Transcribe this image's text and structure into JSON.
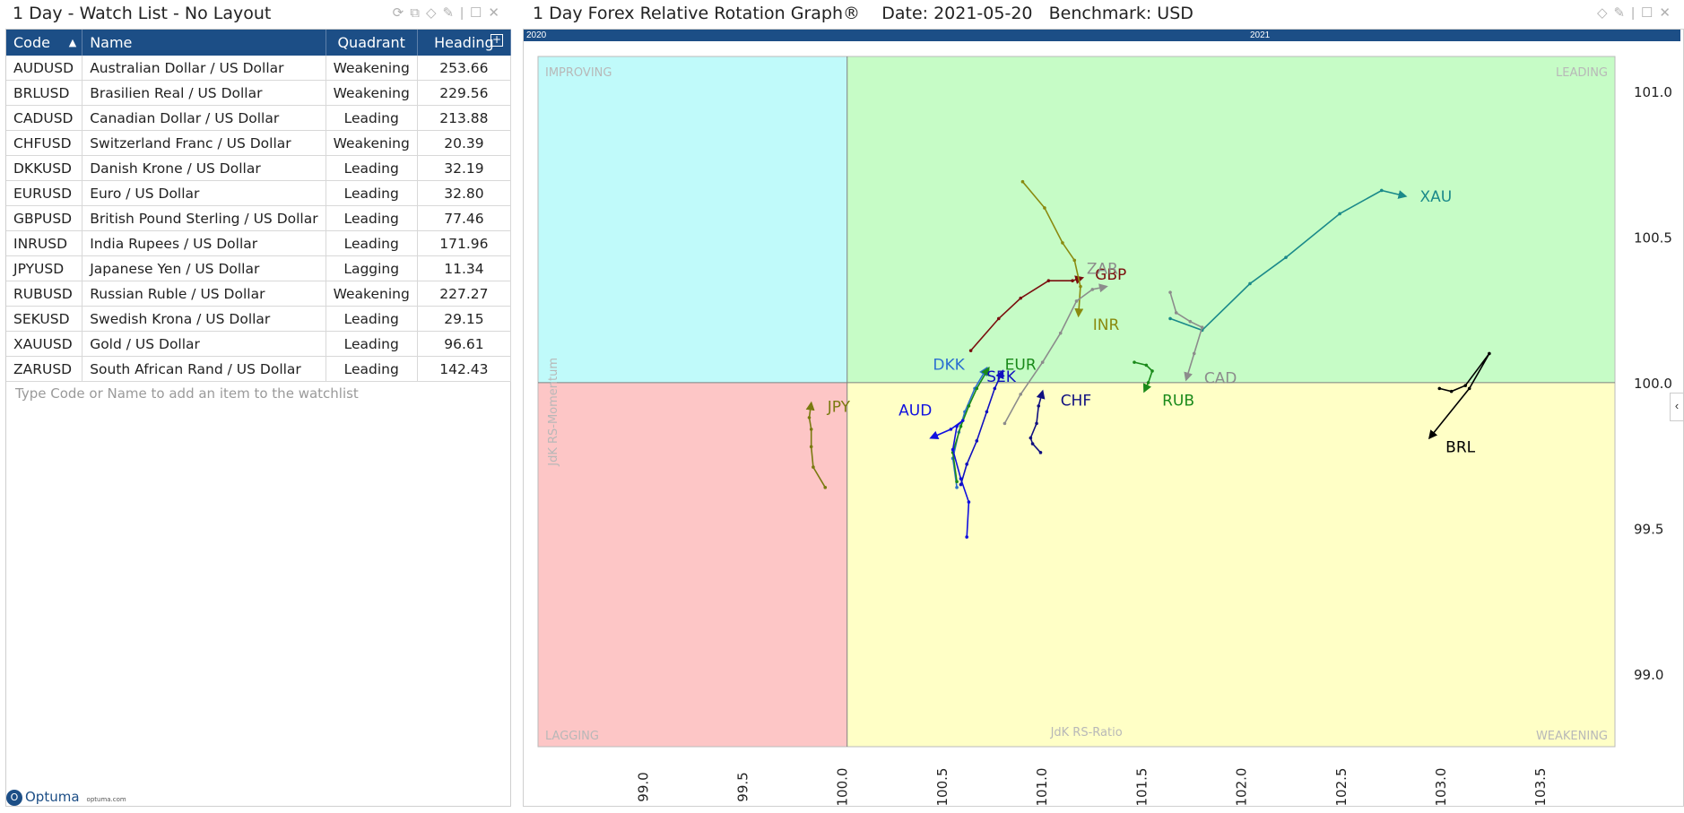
{
  "watchlist": {
    "title": "1 Day - Watch List - No Layout",
    "columns": [
      "Code",
      "Name",
      "Quadrant",
      "Heading"
    ],
    "rows": [
      {
        "code": "AUDUSD",
        "name": "Australian Dollar / US Dollar",
        "quadrant": "Weakening",
        "heading": "253.66"
      },
      {
        "code": "BRLUSD",
        "name": "Brasilien Real / US Dollar",
        "quadrant": "Weakening",
        "heading": "229.56"
      },
      {
        "code": "CADUSD",
        "name": "Canadian Dollar / US Dollar",
        "quadrant": "Leading",
        "heading": "213.88"
      },
      {
        "code": "CHFUSD",
        "name": "Switzerland Franc / US Dollar",
        "quadrant": "Weakening",
        "heading": "20.39"
      },
      {
        "code": "DKKUSD",
        "name": "Danish Krone / US Dollar",
        "quadrant": "Leading",
        "heading": "32.19"
      },
      {
        "code": "EURUSD",
        "name": "Euro / US Dollar",
        "quadrant": "Leading",
        "heading": "32.80"
      },
      {
        "code": "GBPUSD",
        "name": "British Pound Sterling / US Dollar",
        "quadrant": "Leading",
        "heading": "77.46"
      },
      {
        "code": "INRUSD",
        "name": "India Rupees / US Dollar",
        "quadrant": "Leading",
        "heading": "171.96"
      },
      {
        "code": "JPYUSD",
        "name": "Japanese Yen / US Dollar",
        "quadrant": "Lagging",
        "heading": "11.34"
      },
      {
        "code": "RUBUSD",
        "name": "Russian Ruble / US Dollar",
        "quadrant": "Weakening",
        "heading": "227.27"
      },
      {
        "code": "SEKUSD",
        "name": "Swedish Krona / US Dollar",
        "quadrant": "Leading",
        "heading": "29.15"
      },
      {
        "code": "XAUUSD",
        "name": "Gold / US Dollar",
        "quadrant": "Leading",
        "heading": "96.61"
      },
      {
        "code": "ZARUSD",
        "name": "South African Rand / US Dollar",
        "quadrant": "Leading",
        "heading": "142.43"
      }
    ],
    "input_placeholder": "Type Code or Name to add an item to the watchlist",
    "logo_text": "Optuma",
    "logo_site": "optuma.com"
  },
  "rrg": {
    "title": "1 Day Forex Relative Rotation Graph®",
    "date_label": "Date: 2021-05-20",
    "benchmark_label": "Benchmark:  USD",
    "timeline_labels": [
      "2020",
      "2021"
    ]
  },
  "chart_data": {
    "type": "scatter",
    "title": "1 Day Forex Relative Rotation Graph®",
    "xlabel": "JdK RS-Ratio",
    "ylabel": "JdK RS-Momentum",
    "xlim": [
      98.45,
      103.85
    ],
    "ylim": [
      98.75,
      101.12
    ],
    "center": [
      100.0,
      100.0
    ],
    "xticks": [
      "99.0",
      "99.5",
      "100.0",
      "100.5",
      "101.0",
      "101.5",
      "102.0",
      "102.5",
      "103.0",
      "103.5"
    ],
    "yticks": [
      "101.0",
      "100.5",
      "100.0",
      "99.5",
      "99.0"
    ],
    "quadrants": [
      {
        "name": "IMPROVING",
        "color": "#c0fafa"
      },
      {
        "name": "LEADING",
        "color": "#c6fcc6"
      },
      {
        "name": "LAGGING",
        "color": "#fdc6c6"
      },
      {
        "name": "WEAKENING",
        "color": "#ffffc6"
      }
    ],
    "series": [
      {
        "name": "XAU",
        "color": "#1b8a8a",
        "points": [
          [
            101.62,
            100.22
          ],
          [
            101.78,
            100.18
          ],
          [
            102.02,
            100.34
          ],
          [
            102.2,
            100.43
          ],
          [
            102.47,
            100.58
          ],
          [
            102.68,
            100.66
          ],
          [
            102.8,
            100.64
          ]
        ]
      },
      {
        "name": "GBP",
        "color": "#7a0e0e",
        "points": [
          [
            100.62,
            100.11
          ],
          [
            100.76,
            100.22
          ],
          [
            100.87,
            100.29
          ],
          [
            101.01,
            100.35
          ],
          [
            101.13,
            100.35
          ],
          [
            101.18,
            100.36
          ]
        ]
      },
      {
        "name": "INR",
        "color": "#8a8a10",
        "points": [
          [
            100.88,
            100.69
          ],
          [
            100.99,
            100.6
          ],
          [
            101.08,
            100.48
          ],
          [
            101.14,
            100.42
          ],
          [
            101.17,
            100.33
          ],
          [
            101.16,
            100.23
          ]
        ]
      },
      {
        "name": "ZAR",
        "color": "#8c8c8c",
        "points": [
          [
            100.79,
            99.86
          ],
          [
            100.87,
            99.96
          ],
          [
            100.98,
            100.07
          ],
          [
            101.07,
            100.17
          ],
          [
            101.15,
            100.28
          ],
          [
            101.23,
            100.32
          ],
          [
            101.3,
            100.33
          ]
        ]
      },
      {
        "name": "CAD",
        "color": "#8c8c8c",
        "points": [
          [
            101.62,
            100.31
          ],
          [
            101.65,
            100.24
          ],
          [
            101.72,
            100.21
          ],
          [
            101.78,
            100.19
          ],
          [
            101.74,
            100.1
          ],
          [
            101.7,
            100.01
          ]
        ]
      },
      {
        "name": "DKK",
        "color": "#2b6fd0",
        "points": [
          [
            100.55,
            99.64
          ],
          [
            100.53,
            99.74
          ],
          [
            100.56,
            99.83
          ],
          [
            100.59,
            99.9
          ],
          [
            100.64,
            99.98
          ],
          [
            100.7,
            100.05
          ]
        ]
      },
      {
        "name": "EUR",
        "color": "#1a8a1a",
        "points": [
          [
            100.55,
            99.66
          ],
          [
            100.53,
            99.76
          ],
          [
            100.57,
            99.85
          ],
          [
            100.61,
            99.92
          ],
          [
            100.65,
            99.98
          ],
          [
            100.71,
            100.05
          ]
        ]
      },
      {
        "name": "AUD",
        "color": "#1010e0",
        "points": [
          [
            100.6,
            99.47
          ],
          [
            100.61,
            99.59
          ],
          [
            100.57,
            99.67
          ],
          [
            100.53,
            99.77
          ],
          [
            100.55,
            99.85
          ],
          [
            100.58,
            99.87
          ],
          [
            100.52,
            99.84
          ],
          [
            100.42,
            99.81
          ]
        ]
      },
      {
        "name": "SEK",
        "color": "#1010c0",
        "points": [
          [
            100.57,
            99.65
          ],
          [
            100.6,
            99.72
          ],
          [
            100.65,
            99.8
          ],
          [
            100.7,
            99.9
          ],
          [
            100.74,
            99.98
          ],
          [
            100.78,
            100.04
          ]
        ]
      },
      {
        "name": "CHF",
        "color": "#101080",
        "points": [
          [
            100.97,
            99.76
          ],
          [
            100.93,
            99.79
          ],
          [
            100.92,
            99.81
          ],
          [
            100.95,
            99.86
          ],
          [
            100.96,
            99.92
          ],
          [
            100.98,
            99.97
          ]
        ]
      },
      {
        "name": "RUB",
        "color": "#1a8a1a",
        "points": [
          [
            101.44,
            100.07
          ],
          [
            101.5,
            100.06
          ],
          [
            101.53,
            100.04
          ],
          [
            101.51,
            100.0
          ],
          [
            101.49,
            99.97
          ]
        ]
      },
      {
        "name": "BRL",
        "color": "#000000",
        "points": [
          [
            102.97,
            99.98
          ],
          [
            103.03,
            99.97
          ],
          [
            103.1,
            99.99
          ],
          [
            103.22,
            100.1
          ],
          [
            103.12,
            99.98
          ],
          [
            102.92,
            99.81
          ]
        ]
      },
      {
        "name": "JPY",
        "color": "#7a7a10",
        "points": [
          [
            99.89,
            99.64
          ],
          [
            99.83,
            99.71
          ],
          [
            99.82,
            99.78
          ],
          [
            99.82,
            99.84
          ],
          [
            99.81,
            99.88
          ],
          [
            99.82,
            99.93
          ]
        ]
      }
    ]
  }
}
